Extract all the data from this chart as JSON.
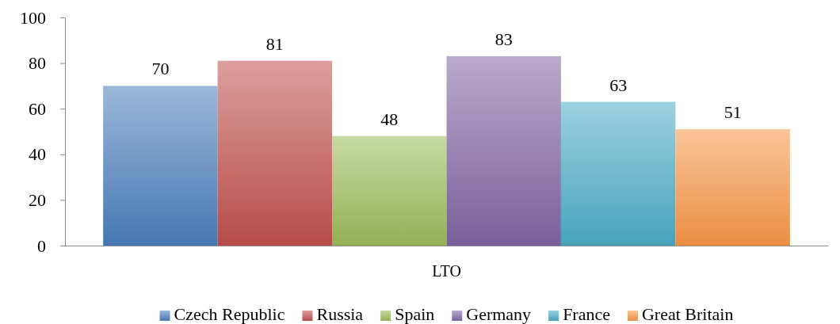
{
  "chart_data": {
    "type": "bar",
    "categories": [
      "LTO"
    ],
    "series": [
      {
        "name": "Czech Republic",
        "color": "#4a7ebb",
        "values": [
          70
        ]
      },
      {
        "name": "Russia",
        "color": "#c0504d",
        "values": [
          81
        ]
      },
      {
        "name": "Spain",
        "color": "#9bbb59",
        "values": [
          48
        ]
      },
      {
        "name": "Germany",
        "color": "#8064a2",
        "values": [
          83
        ]
      },
      {
        "name": "France",
        "color": "#4bacc6",
        "values": [
          63
        ]
      },
      {
        "name": "Great Britain",
        "color": "#f79646",
        "values": [
          51
        ]
      }
    ],
    "ylim": [
      0,
      100
    ],
    "yticks": [
      0,
      20,
      40,
      60,
      80,
      100
    ],
    "data_labels": true,
    "legend": "bottom"
  }
}
